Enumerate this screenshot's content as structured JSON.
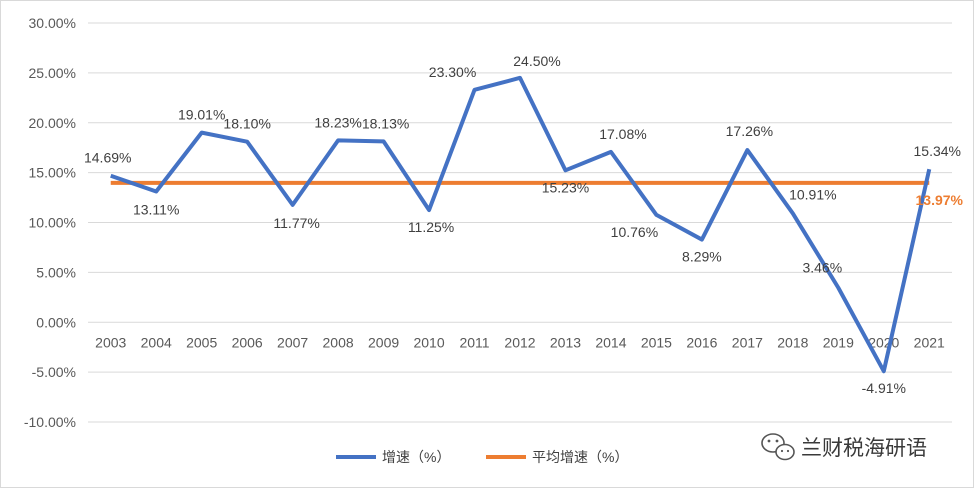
{
  "chart_data": {
    "type": "line",
    "title": "",
    "xlabel": "",
    "ylabel": "",
    "ylim": [
      -10,
      30
    ],
    "y_ticks": [
      30,
      25,
      20,
      15,
      10,
      5,
      0,
      -5,
      -10
    ],
    "y_tick_labels": [
      "30.00%",
      "25.00%",
      "20.00%",
      "15.00%",
      "10.00%",
      "5.00%",
      "0.00%",
      "-5.00%",
      "-10.00%"
    ],
    "grid": "horizontal",
    "legend_position": "bottom",
    "categories": [
      "2003",
      "2004",
      "2005",
      "2006",
      "2007",
      "2008",
      "2009",
      "2010",
      "2011",
      "2012",
      "2013",
      "2014",
      "2015",
      "2016",
      "2017",
      "2018",
      "2019",
      "2020",
      "2021"
    ],
    "series": [
      {
        "name": "增速（%）",
        "color": "#4472c4",
        "values": [
          14.69,
          13.11,
          19.01,
          18.1,
          11.77,
          18.23,
          18.13,
          11.25,
          23.3,
          24.5,
          15.23,
          17.08,
          10.76,
          8.29,
          17.26,
          10.91,
          3.46,
          -4.91,
          15.34
        ],
        "labels": [
          "14.69%",
          "13.11%",
          "19.01%",
          "18.10%",
          "11.77%",
          "18.23%",
          "18.13%",
          "11.25%",
          "23.30%",
          "24.50%",
          "15.23%",
          "17.08%",
          "10.76%",
          "8.29%",
          "17.26%",
          "10.91%",
          "3.46%",
          "-4.91%",
          "15.34%"
        ]
      },
      {
        "name": "平均增速（%）",
        "color": "#ed7d31",
        "values": [
          13.97,
          13.97,
          13.97,
          13.97,
          13.97,
          13.97,
          13.97,
          13.97,
          13.97,
          13.97,
          13.97,
          13.97,
          13.97,
          13.97,
          13.97,
          13.97,
          13.97,
          13.97,
          13.97
        ],
        "end_label": "13.97%"
      }
    ]
  },
  "watermark": {
    "icon": "wechat-icon",
    "text": "兰财税海研语"
  }
}
